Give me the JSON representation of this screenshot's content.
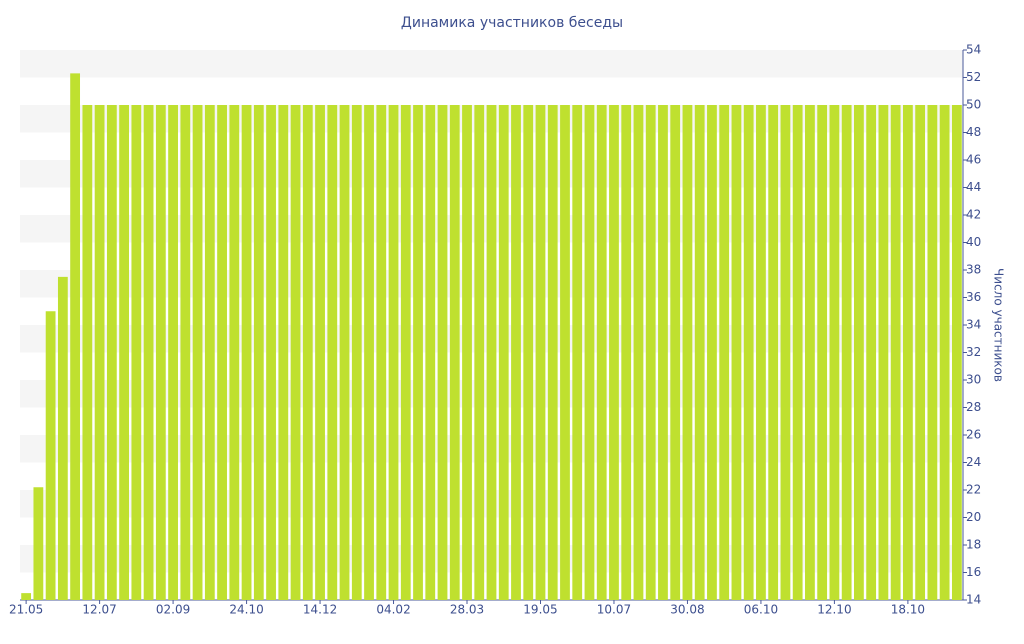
{
  "chart_data": {
    "type": "bar",
    "title": "Динамика участников беседы",
    "y_axis_label": "Число участников",
    "categories": [
      "21.05",
      null,
      null,
      null,
      null,
      null,
      "12.07",
      null,
      null,
      null,
      null,
      null,
      "02.09",
      null,
      null,
      null,
      null,
      null,
      "24.10",
      null,
      null,
      null,
      null,
      null,
      "14.12",
      null,
      null,
      null,
      null,
      null,
      "04.02",
      null,
      null,
      null,
      null,
      null,
      "28.03",
      null,
      null,
      null,
      null,
      null,
      "19.05",
      null,
      null,
      null,
      null,
      null,
      "10.07",
      null,
      null,
      null,
      null,
      null,
      "30.08",
      null,
      null,
      null,
      null,
      null,
      "06.10",
      null,
      null,
      null,
      null,
      null,
      "12.10",
      null,
      null,
      null,
      null,
      null,
      "18.10",
      null,
      null,
      null,
      null
    ],
    "values": [
      14.5,
      22.2,
      35,
      37.5,
      52.3,
      50,
      50,
      50,
      50,
      50,
      50,
      50,
      50,
      50,
      50,
      50,
      50,
      50,
      50,
      50,
      50,
      50,
      50,
      50,
      50,
      50,
      50,
      50,
      50,
      50,
      50,
      50,
      50,
      50,
      50,
      50,
      50,
      50,
      50,
      50,
      50,
      50,
      50,
      50,
      50,
      50,
      50,
      50,
      50,
      50,
      50,
      50,
      50,
      50,
      50,
      50,
      50,
      50,
      50,
      50,
      50,
      50,
      50,
      50,
      50,
      50,
      50,
      50,
      50,
      50,
      50,
      50,
      50,
      50,
      50,
      50,
      50
    ],
    "color": "#bfe02f",
    "ylim": [
      14,
      54
    ],
    "yticks": [
      14,
      16,
      18,
      20,
      22,
      24,
      26,
      28,
      30,
      32,
      34,
      36,
      38,
      40,
      42,
      44,
      46,
      48,
      50,
      52,
      54
    ],
    "y_axis_side": "right",
    "banded_background": true
  }
}
